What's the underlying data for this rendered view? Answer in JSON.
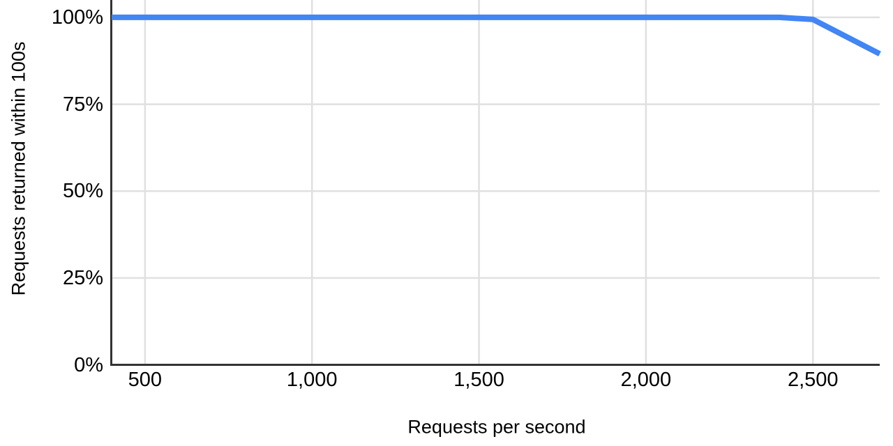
{
  "colors": {
    "line": "#4285f4",
    "grid": "#e0e0e0",
    "axis": "#333333",
    "text": "#000000",
    "background": "#ffffff"
  },
  "chart_data": {
    "type": "line",
    "title": "",
    "xlabel": "Requests per second",
    "ylabel": "Requests returned within 100s",
    "xlim": [
      400,
      2700
    ],
    "ylim": [
      0,
      105
    ],
    "grid": true,
    "legend_position": "none",
    "x_ticks": [
      500,
      1000,
      1500,
      2000,
      2500
    ],
    "x_tick_labels": [
      "500",
      "1,000",
      "1,500",
      "2,000",
      "2,500"
    ],
    "y_ticks": [
      0,
      25,
      50,
      75,
      100
    ],
    "y_tick_labels": [
      "0%",
      "25%",
      "50%",
      "75%",
      "100%"
    ],
    "series": [
      {
        "name": "Requests returned within 100s",
        "color": "#4285f4",
        "points": [
          [
            400,
            100
          ],
          [
            500,
            100
          ],
          [
            1000,
            100
          ],
          [
            1500,
            100
          ],
          [
            2000,
            100
          ],
          [
            2400,
            100
          ],
          [
            2500,
            99.4
          ],
          [
            2700,
            89.5
          ]
        ]
      }
    ]
  }
}
